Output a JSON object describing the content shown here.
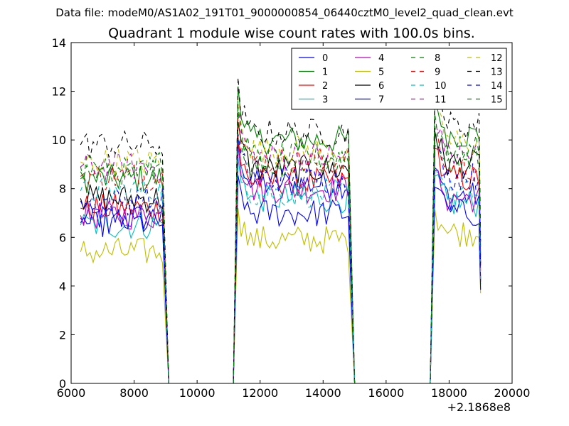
{
  "chart_data": {
    "type": "line",
    "suptitle": "Data file: modeM0/AS1A02_191T01_9000000854_06440cztM0_level2_quad_clean.evt",
    "title": "Quadrant 1 module wise count rates with 100.0s bins.",
    "xlabel": "",
    "ylabel": "",
    "xlim": [
      6000,
      20000
    ],
    "ylim": [
      0,
      14
    ],
    "x_offset_label": "+2.1868e8",
    "xticks": [
      6000,
      8000,
      10000,
      12000,
      14000,
      16000,
      18000,
      20000
    ],
    "yticks": [
      0,
      2,
      4,
      6,
      8,
      10,
      12,
      14
    ],
    "xtick_labels": [
      "6000",
      "8000",
      "10000",
      "12000",
      "14000",
      "16000",
      "18000",
      "20000"
    ],
    "ytick_labels": [
      "0",
      "2",
      "4",
      "6",
      "8",
      "10",
      "12",
      "14"
    ],
    "grid": false,
    "legend_position": "top-right",
    "legend_columns": 4,
    "segments": [
      {
        "start": 6300,
        "end": 8950
      },
      {
        "start": 11300,
        "end": 14850
      },
      {
        "start": 17550,
        "end": 18950
      }
    ],
    "gap_edges": [
      9100,
      11150,
      15000,
      17400,
      19000
    ],
    "series": [
      {
        "name": "0",
        "color": "#0000ff",
        "dash": "solid",
        "levels": [
          6.8,
          8.2,
          7.7
        ]
      },
      {
        "name": "1",
        "color": "#008000",
        "dash": "solid",
        "levels": [
          8.4,
          10.0,
          10.2
        ]
      },
      {
        "name": "2",
        "color": "#ff0000",
        "dash": "solid",
        "levels": [
          7.2,
          8.3,
          8.4
        ]
      },
      {
        "name": "3",
        "color": "#00bfbf",
        "dash": "solid",
        "levels": [
          6.5,
          7.6,
          7.4
        ]
      },
      {
        "name": "4",
        "color": "#bf00bf",
        "dash": "solid",
        "levels": [
          6.9,
          8.0,
          7.6
        ]
      },
      {
        "name": "5",
        "color": "#bfbf00",
        "dash": "solid",
        "levels": [
          5.4,
          5.9,
          6.2
        ]
      },
      {
        "name": "6",
        "color": "#000000",
        "dash": "solid",
        "levels": [
          7.6,
          8.8,
          9.0
        ]
      },
      {
        "name": "7",
        "color": "#0000ff",
        "dash": "solid",
        "levels": [
          6.6,
          7.0,
          7.0
        ]
      },
      {
        "name": "8",
        "color": "#008000",
        "dash": "dashed",
        "levels": [
          8.7,
          9.0,
          9.2
        ]
      },
      {
        "name": "9",
        "color": "#ff0000",
        "dash": "dashed",
        "levels": [
          8.5,
          9.1,
          8.8
        ]
      },
      {
        "name": "10",
        "color": "#00bfbf",
        "dash": "dashed",
        "levels": [
          7.9,
          7.8,
          7.8
        ]
      },
      {
        "name": "11",
        "color": "#bf00bf",
        "dash": "dashed",
        "levels": [
          8.9,
          9.3,
          9.4
        ]
      },
      {
        "name": "12",
        "color": "#bfbf00",
        "dash": "dashed",
        "levels": [
          9.1,
          9.6,
          9.9
        ]
      },
      {
        "name": "13",
        "color": "#000000",
        "dash": "dashed",
        "levels": [
          9.8,
          10.3,
          10.6
        ]
      },
      {
        "name": "14",
        "color": "#0000ff",
        "dash": "dashed",
        "levels": [
          7.5,
          8.4,
          8.5
        ]
      },
      {
        "name": "15",
        "color": "#008000",
        "dash": "dashed",
        "levels": [
          8.9,
          9.3,
          9.6
        ]
      }
    ]
  }
}
